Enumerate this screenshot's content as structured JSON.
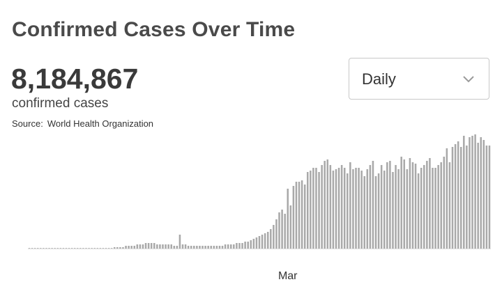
{
  "header": {
    "title": "Confirmed Cases Over Time",
    "total": "8,184,867",
    "unit": "confirmed cases",
    "source_label": "Source:",
    "source_name": "World Health Organization"
  },
  "controls": {
    "frequency_selected": "Daily",
    "frequency_icon": "chevron-down-icon"
  },
  "colors": {
    "bar": "#a9a9a9",
    "baseline": "#e0e0e0",
    "text": "#3a3a3a"
  },
  "chart_data": {
    "type": "bar",
    "title": "",
    "xlabel": "",
    "ylabel": "",
    "x_ticks": [
      {
        "label": "Mar",
        "index": 91
      }
    ],
    "grid": false,
    "values": [
      0,
      0,
      0,
      0,
      0,
      0,
      0,
      0,
      0,
      0,
      0,
      0,
      0,
      0,
      0,
      0,
      0,
      0,
      0,
      0,
      0,
      0,
      0,
      0,
      0,
      0,
      0,
      0,
      0,
      0,
      1,
      1,
      1,
      1,
      2,
      2,
      2,
      2,
      3,
      3,
      3,
      4,
      4,
      4,
      4,
      3,
      3,
      3,
      3,
      3,
      3,
      2,
      2,
      10,
      3,
      3,
      2,
      2,
      2,
      2,
      2,
      2,
      2,
      2,
      2,
      2,
      2,
      2,
      2,
      3,
      3,
      3,
      3,
      4,
      4,
      4,
      5,
      5,
      6,
      7,
      8,
      9,
      10,
      11,
      12,
      14,
      17,
      21,
      26,
      28,
      25,
      43,
      31,
      45,
      48,
      48,
      49,
      46,
      55,
      56,
      58,
      58,
      55,
      60,
      63,
      64,
      60,
      56,
      57,
      58,
      60,
      58,
      54,
      62,
      57,
      58,
      58,
      56,
      52,
      57,
      60,
      63,
      52,
      54,
      60,
      56,
      62,
      63,
      55,
      60,
      57,
      66,
      64,
      57,
      65,
      62,
      61,
      54,
      58,
      60,
      63,
      65,
      58,
      58,
      60,
      62,
      66,
      72,
      62,
      73,
      75,
      77,
      73,
      81,
      74,
      80,
      81,
      82,
      76,
      80,
      78,
      74,
      74
    ],
    "ylim": [
      0,
      100
    ]
  }
}
